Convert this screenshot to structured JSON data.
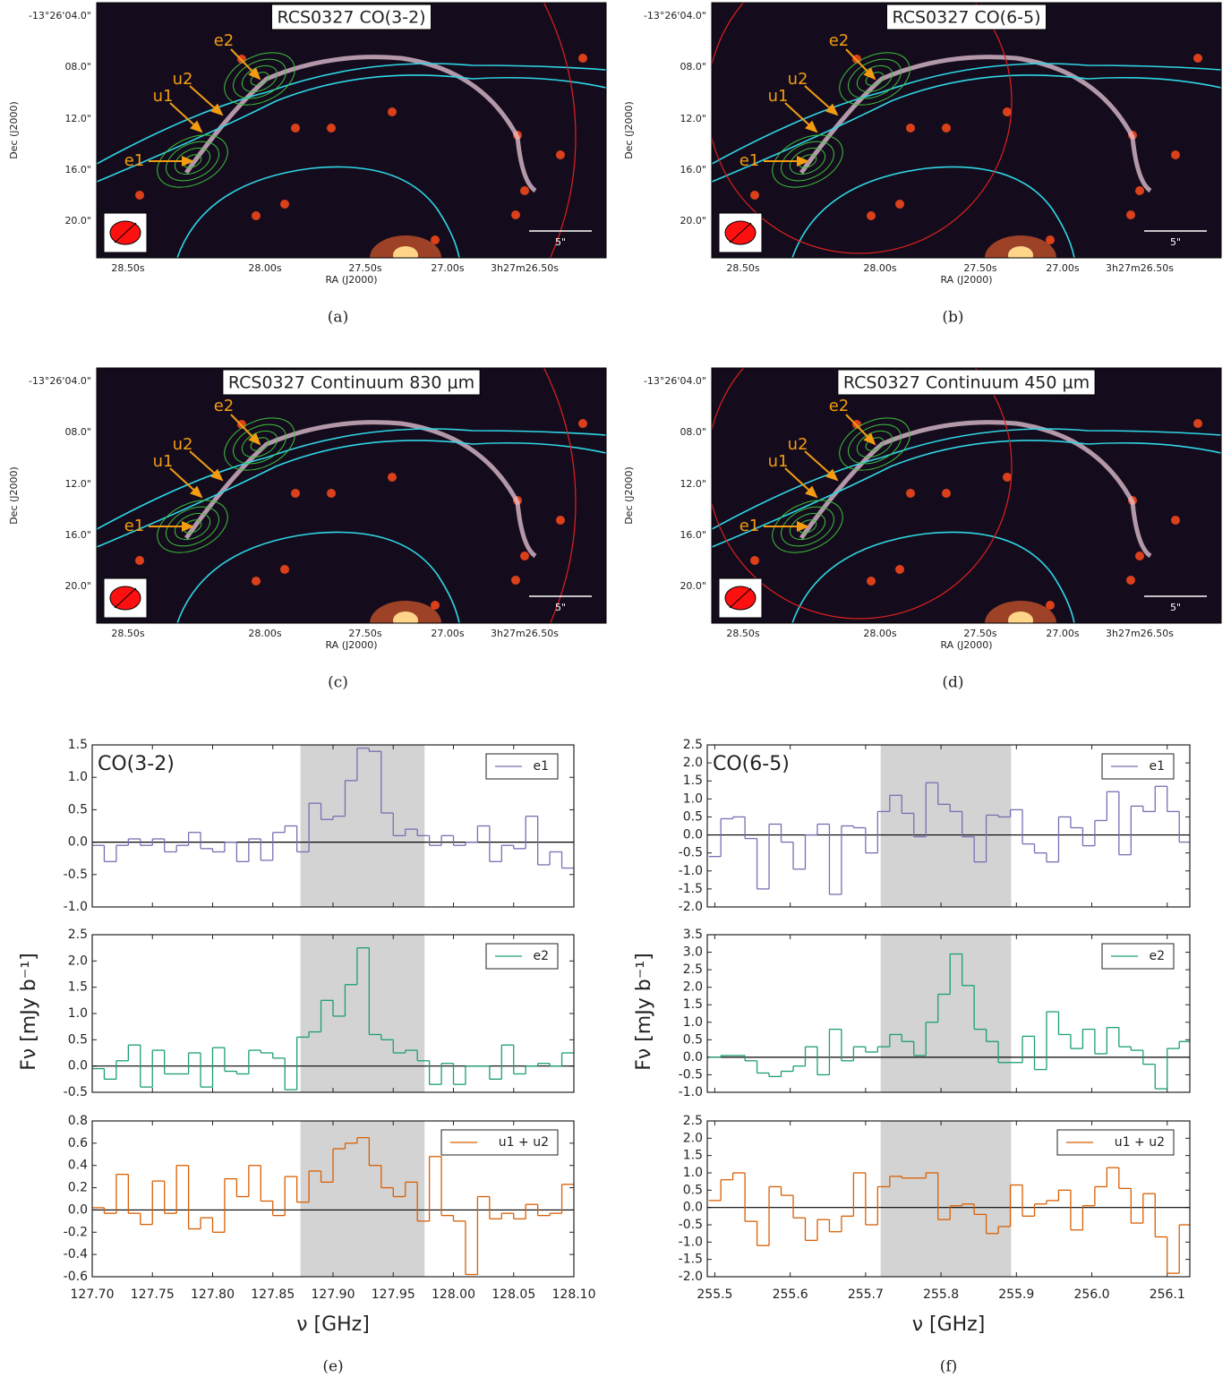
{
  "images": [
    {
      "title": "RCS0327 CO(3-2)",
      "caption": "(a)"
    },
    {
      "title": "RCS0327 CO(6-5)",
      "caption": "(b)"
    },
    {
      "title": "RCS0327 Continuum 830 μm",
      "caption": "(c)"
    },
    {
      "title": "RCS0327 Continuum 450 μm",
      "caption": "(d)"
    }
  ],
  "image_axes": {
    "xlabel": "RA (J2000)",
    "ylabel": "Dec (J2000)",
    "xticks": [
      "28.50s",
      "28.00s",
      "27.50s",
      "27.00s",
      "3h27m26.50s"
    ],
    "yticks": [
      "-13°26'04.0\"",
      "08.0\"",
      "12.0\"",
      "16.0\"",
      "20.0\""
    ],
    "scale": "5\"",
    "sources": [
      "e1",
      "e2",
      "u1",
      "u2"
    ]
  },
  "chart_data": [
    {
      "type": "step",
      "title": "CO(3-2)",
      "caption": "(e)",
      "xlabel": "ν [GHz]",
      "ylabel": "Fν [mJy b⁻¹]",
      "xlim": [
        127.7,
        128.1
      ],
      "xticks": [
        {
          "value": 127.7,
          "label": "127.70"
        },
        127.75,
        {
          "value": 127.8,
          "label": "127.80"
        },
        127.85,
        {
          "value": 127.9,
          "label": "127.90"
        },
        127.95,
        {
          "value": 128,
          "label": "128.00"
        },
        128.05,
        {
          "value": 128.1,
          "label": "128.10"
        }
      ],
      "shade": [
        127.873,
        127.976
      ],
      "x": [
        127.705,
        127.715,
        127.725,
        127.735,
        127.745,
        127.755,
        127.765,
        127.775,
        127.785,
        127.795,
        127.805,
        127.815,
        127.825,
        127.835,
        127.845,
        127.855,
        127.865,
        127.875,
        127.885,
        127.895,
        127.905,
        127.915,
        127.925,
        127.935,
        127.945,
        127.955,
        127.965,
        127.975,
        127.985,
        127.995,
        128.005,
        128.015,
        128.025,
        128.035,
        128.045,
        128.055,
        128.065,
        128.075,
        128.085,
        128.095
      ],
      "series": [
        {
          "name": "e1",
          "color": "#7570b3",
          "ylim": [
            -1,
            1.5
          ],
          "yticks": [
            {
              "value": -1,
              "label": "-1.0"
            },
            -0.5,
            {
              "value": 0,
              "label": "0.0"
            },
            0.5,
            {
              "value": 1,
              "label": "1.0"
            },
            1.5
          ],
          "values": [
            -0.05,
            -0.3,
            -0.05,
            0.05,
            -0.05,
            0.05,
            -0.15,
            -0.05,
            0.15,
            -0.1,
            -0.15,
            0.0,
            -0.3,
            0.05,
            -0.28,
            0.15,
            0.25,
            -0.15,
            0.6,
            0.35,
            0.4,
            0.95,
            1.45,
            1.4,
            0.45,
            0.1,
            0.2,
            0.1,
            -0.05,
            0.1,
            -0.05,
            0.0,
            0.25,
            -0.3,
            -0.05,
            -0.1,
            0.4,
            -0.35,
            -0.15,
            -0.4
          ]
        },
        {
          "name": "e2",
          "color": "#1b9e77",
          "ylim": [
            -0.5,
            2.5
          ],
          "yticks": [
            -0.5,
            {
              "value": 0,
              "label": "0.0"
            },
            0.5,
            {
              "value": 1,
              "label": "1.0"
            },
            1.5,
            {
              "value": 2,
              "label": "2.0"
            },
            2.5
          ],
          "values": [
            -0.05,
            -0.25,
            0.1,
            0.4,
            -0.4,
            0.3,
            -0.15,
            -0.15,
            0.25,
            -0.4,
            0.35,
            -0.1,
            -0.15,
            0.3,
            0.25,
            0.15,
            -0.45,
            0.55,
            0.65,
            1.25,
            0.95,
            1.55,
            2.25,
            0.6,
            0.5,
            0.25,
            0.3,
            0.1,
            -0.35,
            0.05,
            -0.35,
            0.0,
            0.0,
            -0.25,
            0.4,
            -0.15,
            0.0,
            0.05,
            0.0,
            0.25
          ]
        },
        {
          "name": "u1 + u2",
          "color": "#d95f02",
          "ylim": [
            -0.6,
            0.8
          ],
          "yticks": [
            -0.6,
            -0.4,
            -0.2,
            {
              "value": 0,
              "label": "0.0"
            },
            0.2,
            0.4,
            0.6,
            0.8
          ],
          "values": [
            0.02,
            -0.03,
            0.32,
            -0.03,
            -0.13,
            0.26,
            -0.03,
            0.4,
            -0.17,
            -0.07,
            -0.2,
            0.28,
            0.12,
            0.4,
            0.08,
            -0.05,
            0.3,
            0.07,
            0.35,
            0.25,
            0.55,
            0.6,
            0.65,
            0.4,
            0.2,
            0.12,
            0.25,
            -0.1,
            0.48,
            -0.05,
            -0.1,
            -0.58,
            0.12,
            -0.08,
            -0.03,
            -0.08,
            0.05,
            -0.05,
            -0.03,
            0.23
          ]
        }
      ]
    },
    {
      "type": "step",
      "title": "CO(6-5)",
      "caption": "(f)",
      "xlabel": "ν [GHz]",
      "ylabel": "Fν [mJy b⁻¹]",
      "xlim": [
        255.49,
        256.13
      ],
      "xticks": [
        255.5,
        255.6,
        255.7,
        255.8,
        255.9,
        {
          "value": 256,
          "label": "256.0"
        },
        256.1
      ],
      "shade": [
        255.72,
        255.893
      ],
      "x": [
        255.5,
        255.516,
        255.532,
        255.548,
        255.564,
        255.58,
        255.596,
        255.612,
        255.628,
        255.644,
        255.66,
        255.676,
        255.692,
        255.708,
        255.724,
        255.74,
        255.756,
        255.772,
        255.788,
        255.804,
        255.82,
        255.836,
        255.852,
        255.868,
        255.884,
        255.9,
        255.916,
        255.932,
        255.948,
        255.964,
        255.98,
        255.996,
        256.012,
        256.028,
        256.044,
        256.06,
        256.076,
        256.092,
        256.108,
        256.124
      ],
      "series": [
        {
          "name": "e1",
          "color": "#7570b3",
          "ylim": [
            -2,
            2.5
          ],
          "yticks": [
            {
              "value": -2,
              "label": "-2.0"
            },
            -1.5,
            {
              "value": -1,
              "label": "-1.0"
            },
            -0.5,
            {
              "value": 0,
              "label": "0.0"
            },
            0.5,
            {
              "value": 1,
              "label": "1.0"
            },
            1.5,
            {
              "value": 2,
              "label": "2.0"
            },
            2.5
          ],
          "values": [
            -0.6,
            0.45,
            0.5,
            -0.1,
            -1.5,
            0.3,
            -0.2,
            -0.95,
            0.0,
            0.3,
            -1.65,
            0.25,
            0.2,
            -0.5,
            0.65,
            1.1,
            0.6,
            -0.05,
            1.45,
            0.85,
            0.65,
            -0.05,
            -0.75,
            0.55,
            0.5,
            0.7,
            -0.25,
            -0.5,
            -0.75,
            0.5,
            0.2,
            -0.3,
            0.4,
            1.2,
            -0.55,
            0.8,
            0.65,
            1.35,
            0.65,
            -0.2
          ]
        },
        {
          "name": "e2",
          "color": "#1b9e77",
          "ylim": [
            -1,
            3.5
          ],
          "yticks": [
            {
              "value": -1,
              "label": "-1.0"
            },
            -0.5,
            {
              "value": 0,
              "label": "0.0"
            },
            0.5,
            {
              "value": 1,
              "label": "1.0"
            },
            1.5,
            {
              "value": 2,
              "label": "2.0"
            },
            2.5,
            {
              "value": 3,
              "label": "3.0"
            },
            3.5
          ],
          "values": [
            0.0,
            0.05,
            0.05,
            -0.1,
            -0.45,
            -0.55,
            -0.4,
            -0.25,
            0.3,
            -0.5,
            0.8,
            -0.1,
            0.3,
            0.15,
            0.3,
            0.65,
            0.45,
            0.05,
            1.0,
            1.8,
            2.95,
            2.05,
            0.8,
            0.45,
            -0.15,
            -0.15,
            0.6,
            -0.35,
            1.3,
            0.65,
            0.25,
            0.8,
            0.1,
            0.85,
            0.3,
            0.2,
            -0.2,
            -0.9,
            0.25,
            0.45
          ]
        },
        {
          "name": "u1 + u2",
          "color": "#d95f02",
          "ylim": [
            -2,
            2.5
          ],
          "yticks": [
            {
              "value": -2,
              "label": "-2.0"
            },
            -1.5,
            {
              "value": -1,
              "label": "-1.0"
            },
            -0.5,
            {
              "value": 0,
              "label": "0.0"
            },
            0.5,
            {
              "value": 1,
              "label": "1.0"
            },
            1.5,
            {
              "value": 2,
              "label": "2.0"
            },
            2.5
          ],
          "values": [
            0.2,
            0.8,
            1.0,
            -0.4,
            -1.1,
            0.6,
            0.35,
            -0.3,
            -0.95,
            -0.35,
            -0.7,
            -0.25,
            1.0,
            -0.5,
            0.6,
            0.9,
            0.85,
            0.85,
            1.0,
            -0.35,
            0.05,
            0.1,
            -0.2,
            -0.75,
            -0.55,
            0.65,
            -0.25,
            0.1,
            0.2,
            0.5,
            -0.65,
            0.05,
            0.6,
            1.15,
            0.55,
            -0.45,
            0.4,
            -0.85,
            -1.9,
            -0.5
          ]
        }
      ]
    }
  ]
}
